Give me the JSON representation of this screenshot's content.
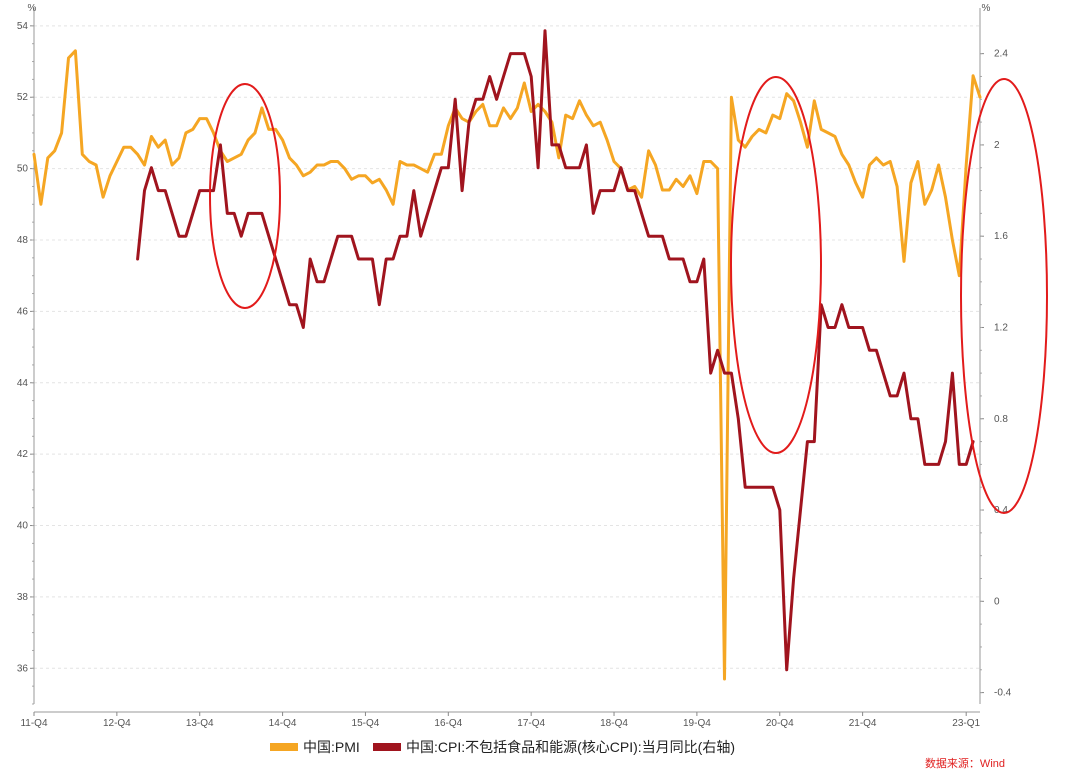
{
  "chart_data": {
    "type": "line",
    "left_axis": {
      "unit": "%",
      "range": [
        35,
        54.5
      ],
      "ticks": [
        "54",
        "52",
        "50",
        "48",
        "46",
        "44",
        "42",
        "40",
        "38",
        "36"
      ]
    },
    "right_axis": {
      "unit": "%",
      "range": [
        -0.45,
        2.6
      ],
      "ticks": [
        "2.4",
        "2",
        "1.6",
        "1.2",
        "0.8",
        "0.4",
        "0",
        "-0.4"
      ]
    },
    "x_axis": {
      "ticks": [
        "11-Q4",
        "12-Q4",
        "13-Q4",
        "14-Q4",
        "15-Q4",
        "16-Q4",
        "17-Q4",
        "18-Q4",
        "19-Q4",
        "20-Q4",
        "21-Q4",
        "23-Q1"
      ]
    },
    "grid": "horizontal dashed",
    "legend_position": "bottom-center",
    "series": [
      {
        "name": "中国:PMI",
        "axis": "left",
        "color": "#f5a623",
        "x": [
          "2011-10",
          "2011-11",
          "2011-12",
          "2012-01",
          "2012-02",
          "2012-03",
          "2012-04",
          "2012-05",
          "2012-06",
          "2012-07",
          "2012-08",
          "2012-09",
          "2012-10",
          "2012-11",
          "2012-12",
          "2013-01",
          "2013-02",
          "2013-03",
          "2013-04",
          "2013-05",
          "2013-06",
          "2013-07",
          "2013-08",
          "2013-09",
          "2013-10",
          "2013-11",
          "2013-12",
          "2014-01",
          "2014-02",
          "2014-03",
          "2014-04",
          "2014-05",
          "2014-06",
          "2014-07",
          "2014-08",
          "2014-09",
          "2014-10",
          "2014-11",
          "2014-12",
          "2015-01",
          "2015-02",
          "2015-03",
          "2015-04",
          "2015-05",
          "2015-06",
          "2015-07",
          "2015-08",
          "2015-09",
          "2015-10",
          "2015-11",
          "2015-12",
          "2016-01",
          "2016-02",
          "2016-03",
          "2016-04",
          "2016-05",
          "2016-06",
          "2016-07",
          "2016-08",
          "2016-09",
          "2016-10",
          "2016-11",
          "2016-12",
          "2017-01",
          "2017-02",
          "2017-03",
          "2017-04",
          "2017-05",
          "2017-06",
          "2017-07",
          "2017-08",
          "2017-09",
          "2017-10",
          "2017-11",
          "2017-12",
          "2018-01",
          "2018-02",
          "2018-03",
          "2018-04",
          "2018-05",
          "2018-06",
          "2018-07",
          "2018-08",
          "2018-09",
          "2018-10",
          "2018-11",
          "2018-12",
          "2019-01",
          "2019-02",
          "2019-03",
          "2019-04",
          "2019-05",
          "2019-06",
          "2019-07",
          "2019-08",
          "2019-09",
          "2019-10",
          "2019-11",
          "2019-12",
          "2020-01",
          "2020-02",
          "2020-03",
          "2020-04",
          "2020-05",
          "2020-06",
          "2020-07",
          "2020-08",
          "2020-09",
          "2020-10",
          "2020-11",
          "2020-12",
          "2021-01",
          "2021-02",
          "2021-03",
          "2021-04",
          "2021-05",
          "2021-06",
          "2021-07",
          "2021-08",
          "2021-09",
          "2021-10",
          "2021-11",
          "2021-12",
          "2022-01",
          "2022-02",
          "2022-03",
          "2022-04",
          "2022-05",
          "2022-06",
          "2022-07",
          "2022-08",
          "2022-09",
          "2022-10",
          "2022-11",
          "2022-12",
          "2023-01",
          "2023-02",
          "2023-03"
        ],
        "values": [
          50.4,
          49.0,
          50.3,
          50.5,
          51.0,
          53.1,
          53.3,
          50.4,
          50.2,
          50.1,
          49.2,
          49.8,
          50.2,
          50.6,
          50.6,
          50.4,
          50.1,
          50.9,
          50.6,
          50.8,
          50.1,
          50.3,
          51.0,
          51.1,
          51.4,
          51.4,
          51.0,
          50.5,
          50.2,
          50.3,
          50.4,
          50.8,
          51.0,
          51.7,
          51.1,
          51.1,
          50.8,
          50.3,
          50.1,
          49.8,
          49.9,
          50.1,
          50.1,
          50.2,
          50.2,
          50.0,
          49.7,
          49.8,
          49.8,
          49.6,
          49.7,
          49.4,
          49.0,
          50.2,
          50.1,
          50.1,
          50.0,
          49.9,
          50.4,
          50.4,
          51.2,
          51.7,
          51.4,
          51.3,
          51.6,
          51.8,
          51.2,
          51.2,
          51.7,
          51.4,
          51.7,
          52.4,
          51.6,
          51.8,
          51.6,
          51.3,
          50.3,
          51.5,
          51.4,
          51.9,
          51.5,
          51.2,
          51.3,
          50.8,
          50.2,
          50.0,
          49.4,
          49.5,
          49.2,
          50.5,
          50.1,
          49.4,
          49.4,
          49.7,
          49.5,
          49.8,
          49.3,
          50.2,
          50.2,
          50.0,
          35.7,
          52.0,
          50.8,
          50.6,
          50.9,
          51.1,
          51.0,
          51.5,
          51.4,
          52.1,
          51.9,
          51.3,
          50.6,
          51.9,
          51.1,
          51.0,
          50.9,
          50.4,
          50.1,
          49.6,
          49.2,
          50.1,
          50.3,
          50.1,
          50.2,
          49.5,
          47.4,
          49.6,
          50.2,
          49.0,
          49.4,
          50.1,
          49.2,
          48.0,
          47.0,
          50.1,
          52.6,
          52.0
        ],
        "label_note": ""
      },
      {
        "name": "中国:CPI:不包括食品和能源(核心CPI):当月同比(右轴)",
        "axis": "right",
        "color": "#a0141e",
        "x": [
          "2013-01",
          "2013-02",
          "2013-03",
          "2013-04",
          "2013-05",
          "2013-06",
          "2013-07",
          "2013-08",
          "2013-09",
          "2013-10",
          "2013-11",
          "2013-12",
          "2014-01",
          "2014-02",
          "2014-03",
          "2014-04",
          "2014-05",
          "2014-06",
          "2014-07",
          "2014-08",
          "2014-09",
          "2014-10",
          "2014-11",
          "2014-12",
          "2015-01",
          "2015-02",
          "2015-03",
          "2015-04",
          "2015-05",
          "2015-06",
          "2015-07",
          "2015-08",
          "2015-09",
          "2015-10",
          "2015-11",
          "2015-12",
          "2016-01",
          "2016-02",
          "2016-03",
          "2016-04",
          "2016-05",
          "2016-06",
          "2016-07",
          "2016-08",
          "2016-09",
          "2016-10",
          "2016-11",
          "2016-12",
          "2017-01",
          "2017-02",
          "2017-03",
          "2017-04",
          "2017-05",
          "2017-06",
          "2017-07",
          "2017-08",
          "2017-09",
          "2017-10",
          "2017-11",
          "2017-12",
          "2018-01",
          "2018-02",
          "2018-03",
          "2018-04",
          "2018-05",
          "2018-06",
          "2018-07",
          "2018-08",
          "2018-09",
          "2018-10",
          "2018-11",
          "2018-12",
          "2019-01",
          "2019-02",
          "2019-03",
          "2019-04",
          "2019-05",
          "2019-06",
          "2019-07",
          "2019-08",
          "2019-09",
          "2019-10",
          "2019-11",
          "2019-12",
          "2020-01",
          "2020-02",
          "2020-03",
          "2020-04",
          "2020-05",
          "2020-06",
          "2020-07",
          "2020-08",
          "2020-09",
          "2020-10",
          "2020-11",
          "2020-12",
          "2021-01",
          "2021-02",
          "2021-03",
          "2021-04",
          "2021-05",
          "2021-06",
          "2021-07",
          "2021-08",
          "2021-09",
          "2021-10",
          "2021-11",
          "2021-12",
          "2022-01",
          "2022-02",
          "2022-03",
          "2022-04",
          "2022-05",
          "2022-06",
          "2022-07",
          "2022-08",
          "2022-09",
          "2022-10",
          "2022-11",
          "2022-12",
          "2023-01",
          "2023-02"
        ],
        "values": [
          1.5,
          1.8,
          1.9,
          1.8,
          1.8,
          1.7,
          1.6,
          1.6,
          1.7,
          1.8,
          1.8,
          1.8,
          2.0,
          1.7,
          1.7,
          1.6,
          1.7,
          1.7,
          1.7,
          1.6,
          1.5,
          1.4,
          1.3,
          1.3,
          1.2,
          1.5,
          1.4,
          1.4,
          1.5,
          1.6,
          1.6,
          1.6,
          1.5,
          1.5,
          1.5,
          1.3,
          1.5,
          1.5,
          1.6,
          1.6,
          1.8,
          1.6,
          1.7,
          1.8,
          1.9,
          1.9,
          2.2,
          1.8,
          2.1,
          2.2,
          2.2,
          2.3,
          2.2,
          2.3,
          2.4,
          2.4,
          2.4,
          2.3,
          1.9,
          2.5,
          2.0,
          2.0,
          1.9,
          1.9,
          1.9,
          2.0,
          1.7,
          1.8,
          1.8,
          1.8,
          1.9,
          1.8,
          1.8,
          1.7,
          1.6,
          1.6,
          1.6,
          1.5,
          1.5,
          1.5,
          1.4,
          1.4,
          1.5,
          1.0,
          1.1,
          1.0,
          1.0,
          0.8,
          0.5,
          0.5,
          0.5,
          0.5,
          0.5,
          0.4,
          -0.3,
          0.1,
          0.4,
          0.7,
          0.7,
          1.3,
          1.2,
          1.2,
          1.3,
          1.2,
          1.2,
          1.2,
          1.1,
          1.1,
          1.0,
          0.9,
          0.9,
          1.0,
          0.8,
          0.8,
          0.6,
          0.6,
          0.6,
          0.7,
          1.0,
          0.6,
          0.6,
          0.7
        ]
      }
    ],
    "annotations": [
      "red ellipse around 2014",
      "red ellipse around 2020",
      "red ellipse around 2023"
    ]
  },
  "legend": [
    {
      "label": "中国:PMI",
      "color": "#f5a623"
    },
    {
      "label": "中国:CPI:不包括食品和能源(核心CPI):当月同比(右轴)",
      "color": "#a0141e"
    }
  ],
  "source": "数据来源：Wind"
}
